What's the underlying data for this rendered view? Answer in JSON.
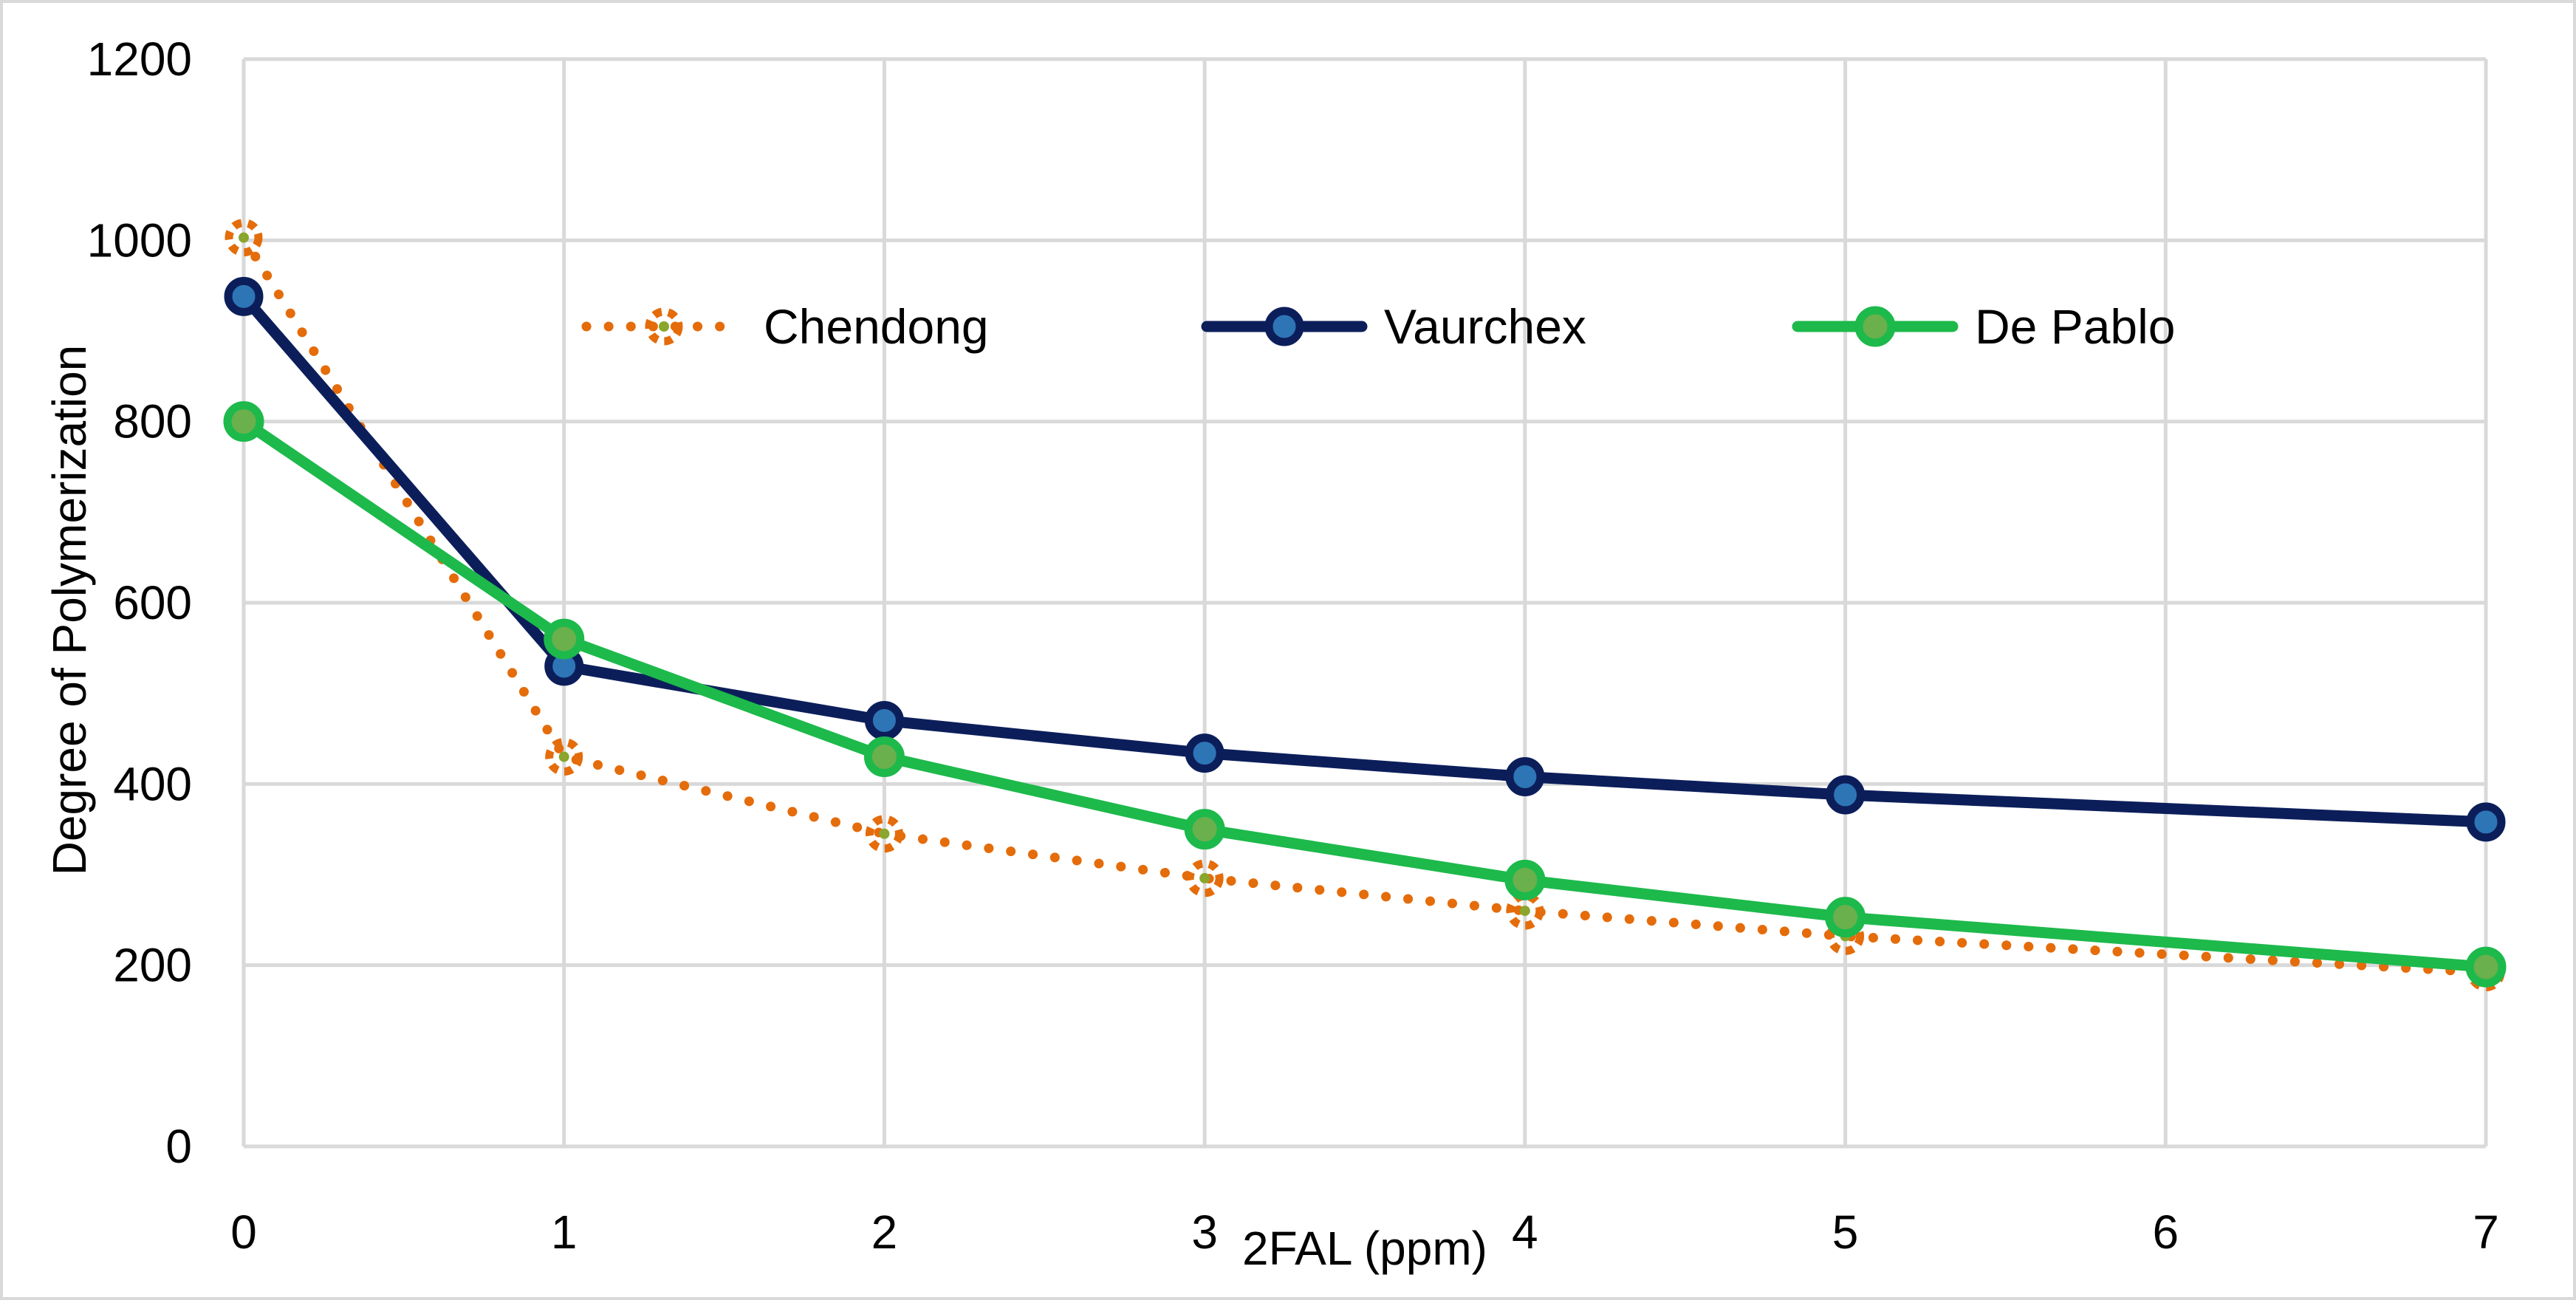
{
  "chart_data": {
    "type": "line",
    "title": "",
    "xlabel": "2FAL (ppm)",
    "ylabel": "Degree of Polymerization",
    "xlim": [
      0,
      7
    ],
    "ylim": [
      0,
      1200
    ],
    "x_ticks": [
      "0",
      "1",
      "2",
      "3",
      "4",
      "5",
      "6",
      "7"
    ],
    "y_ticks": [
      "0",
      "200",
      "400",
      "600",
      "800",
      "1000",
      "1200"
    ],
    "grid": true,
    "legend_position": "top",
    "series": [
      {
        "name": "Chendong",
        "style": "dotted",
        "color": "#e46c0a",
        "x": [
          0,
          1,
          2,
          3,
          4,
          5,
          7
        ],
        "values": [
          1003,
          430,
          345,
          296,
          260,
          232,
          192
        ]
      },
      {
        "name": "Vaurchex",
        "style": "solid",
        "color": "#0c1e5a",
        "x": [
          0,
          1,
          2,
          3,
          4,
          5,
          7
        ],
        "values": [
          938,
          530,
          470,
          434,
          408,
          388,
          358
        ]
      },
      {
        "name": "De Pablo",
        "style": "solid",
        "color": "#1db94b",
        "x": [
          0,
          1,
          2,
          3,
          4,
          5,
          7
        ],
        "values": [
          800,
          560,
          430,
          350,
          294,
          253,
          198
        ]
      }
    ]
  }
}
